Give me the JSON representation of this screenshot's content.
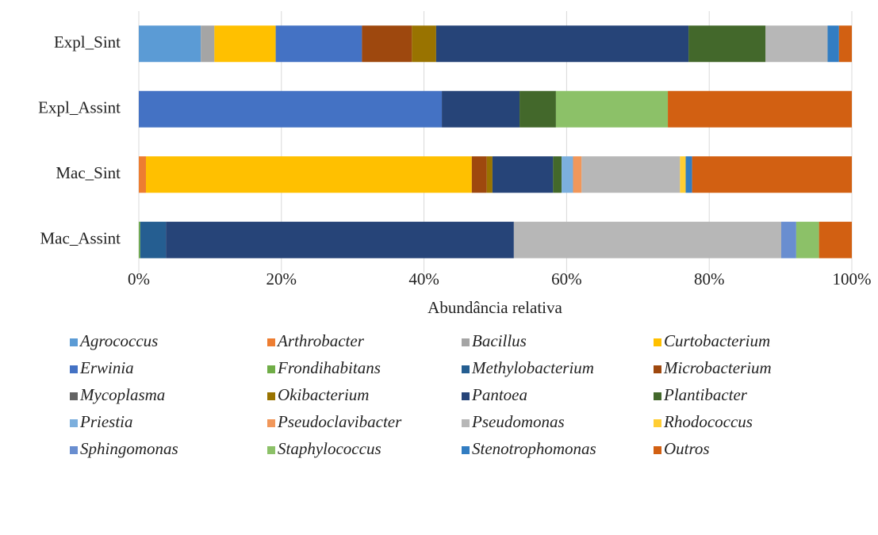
{
  "chart_data": {
    "type": "stacked_bar_horizontal",
    "x_label": "Abundância relativa",
    "categories": [
      "Expl_Sint",
      "Expl_Assint",
      "Mac_Sint",
      "Mac_Assint"
    ],
    "xlim": [
      0,
      100
    ],
    "xticks": [
      {
        "value": 0,
        "label": "0%"
      },
      {
        "value": 20,
        "label": "20%"
      },
      {
        "value": 40,
        "label": "40%"
      },
      {
        "value": 60,
        "label": "60%"
      },
      {
        "value": 80,
        "label": "80%"
      },
      {
        "value": 100,
        "label": "100%"
      }
    ],
    "grid": true,
    "legend": "bottom",
    "series": [
      {
        "name": "Agrococcus",
        "color": "#5b9bd5",
        "values": [
          8.7,
          0,
          0,
          0
        ]
      },
      {
        "name": "Arthrobacter",
        "color": "#ed7d31",
        "values": [
          0,
          0,
          1.0,
          0
        ]
      },
      {
        "name": "Bacillus",
        "color": "#a5a5a5",
        "values": [
          1.9,
          0,
          0,
          0
        ]
      },
      {
        "name": "Curtobacterium",
        "color": "#ffc000",
        "values": [
          8.6,
          0,
          45.7,
          0
        ]
      },
      {
        "name": "Erwinia",
        "color": "#4472c4",
        "values": [
          12.1,
          42.5,
          0,
          0
        ]
      },
      {
        "name": "Frondihabitans",
        "color": "#70ad47",
        "values": [
          0,
          0,
          0,
          0.2
        ]
      },
      {
        "name": "Methylobacterium",
        "color": "#255e91",
        "values": [
          0,
          0,
          0,
          3.6
        ]
      },
      {
        "name": "Microbacterium",
        "color": "#9e480e",
        "values": [
          7.0,
          0,
          2.1,
          0
        ]
      },
      {
        "name": "Mycoplasma",
        "color": "#636363",
        "values": [
          0,
          0,
          0,
          0
        ]
      },
      {
        "name": "Okibacterium",
        "color": "#997300",
        "values": [
          3.4,
          0,
          0.8,
          0
        ]
      },
      {
        "name": "Pantoea",
        "color": "#264478",
        "values": [
          35.4,
          10.9,
          8.5,
          48.8
        ]
      },
      {
        "name": "Plantibacter",
        "color": "#43682b",
        "values": [
          10.8,
          5.1,
          1.2,
          0
        ]
      },
      {
        "name": "Priestia",
        "color": "#7cafdd",
        "values": [
          0,
          0,
          1.6,
          0
        ]
      },
      {
        "name": "Pseudoclavibacter",
        "color": "#f1975a",
        "values": [
          0,
          0,
          1.2,
          0
        ]
      },
      {
        "name": "Pseudomonas",
        "color": "#b7b7b7",
        "values": [
          8.7,
          0,
          13.8,
          37.5
        ]
      },
      {
        "name": "Rhodococcus",
        "color": "#ffcd33",
        "values": [
          0,
          0,
          0.8,
          0
        ]
      },
      {
        "name": "Sphingomonas",
        "color": "#698ed0",
        "values": [
          0,
          0,
          0,
          2.1
        ]
      },
      {
        "name": "Staphylococcus",
        "color": "#8cc168",
        "values": [
          0,
          15.7,
          0,
          3.2
        ]
      },
      {
        "name": "Stenotrophomonas",
        "color": "#327dc2",
        "values": [
          1.6,
          0,
          0.9,
          0
        ]
      },
      {
        "name": "Outros",
        "color": "#d26012",
        "values": [
          1.8,
          25.8,
          22.4,
          4.6
        ]
      }
    ]
  }
}
